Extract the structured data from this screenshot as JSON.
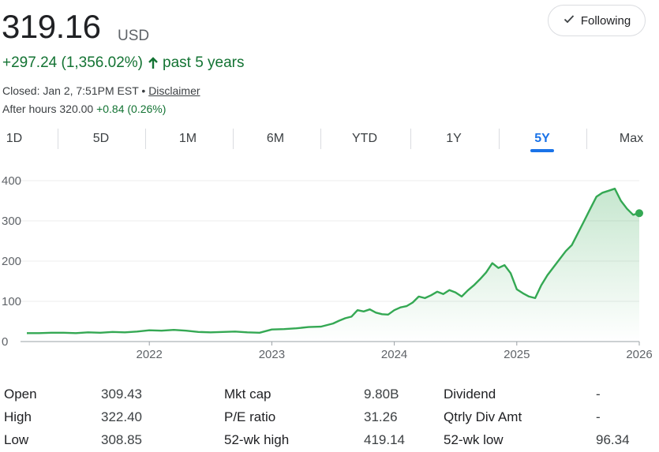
{
  "quote": {
    "price": "319.16",
    "currency": "USD",
    "change": "+297.24 (1,356.02%)",
    "period": "past 5 years",
    "closed_text": "Closed: Jan 2, 7:51PM EST",
    "separator": " • ",
    "disclaimer": "Disclaimer",
    "after_hours_prefix": "After hours 320.00",
    "after_hours_change": "+0.84 (0.26%)"
  },
  "follow_button": {
    "label": "Following"
  },
  "ranges": [
    "1D",
    "5D",
    "1M",
    "6M",
    "YTD",
    "1Y",
    "5Y",
    "Max"
  ],
  "active_range": "5Y",
  "colors": {
    "line": "#34a853",
    "positive": "#137333",
    "accent": "#1a73e8"
  },
  "chart_data": {
    "type": "line",
    "title": "",
    "xlabel": "",
    "ylabel": "",
    "ylim": [
      0,
      400
    ],
    "yticks": [
      0,
      100,
      200,
      300,
      400
    ],
    "xticks": [
      2022,
      2023,
      2024,
      2025,
      2026
    ],
    "grid": true,
    "series": [
      {
        "x": [
          2021.0,
          2021.1,
          2021.2,
          2021.3,
          2021.4,
          2021.5,
          2021.6,
          2021.7,
          2021.8,
          2021.9,
          2022.0,
          2022.1,
          2022.2,
          2022.3,
          2022.4,
          2022.5,
          2022.6,
          2022.7,
          2022.8,
          2022.9,
          2023.0,
          2023.1,
          2023.2,
          2023.3,
          2023.4,
          2023.5,
          2023.55,
          2023.6,
          2023.65,
          2023.7,
          2023.75,
          2023.8,
          2023.85,
          2023.9,
          2023.95,
          2024.0,
          2024.05,
          2024.1,
          2024.15,
          2024.2,
          2024.25,
          2024.3,
          2024.35,
          2024.4,
          2024.45,
          2024.5,
          2024.55,
          2024.6,
          2024.65,
          2024.7,
          2024.75,
          2024.8,
          2024.85,
          2024.9,
          2024.95,
          2025.0,
          2025.05,
          2025.1,
          2025.15,
          2025.2,
          2025.25,
          2025.3,
          2025.35,
          2025.4,
          2025.45,
          2025.5,
          2025.55,
          2025.6,
          2025.65,
          2025.7,
          2025.75,
          2025.8,
          2025.85,
          2025.9,
          2025.95,
          2026.0
        ],
        "values": [
          21,
          21,
          22,
          22,
          21,
          23,
          22,
          24,
          23,
          25,
          28,
          27,
          29,
          27,
          24,
          23,
          24,
          25,
          23,
          22,
          30,
          31,
          33,
          36,
          37,
          45,
          52,
          58,
          62,
          78,
          75,
          80,
          72,
          68,
          67,
          78,
          85,
          88,
          97,
          112,
          108,
          115,
          124,
          118,
          128,
          122,
          112,
          127,
          140,
          155,
          172,
          195,
          183,
          190,
          170,
          130,
          120,
          112,
          108,
          140,
          165,
          185,
          205,
          225,
          240,
          270,
          300,
          330,
          360,
          370,
          375,
          380,
          350,
          330,
          315,
          319.16
        ]
      }
    ],
    "last_value": 319.16
  },
  "stats": {
    "col1": [
      {
        "label": "Open",
        "value": "309.43"
      },
      {
        "label": "High",
        "value": "322.40"
      },
      {
        "label": "Low",
        "value": "308.85"
      }
    ],
    "col2": [
      {
        "label": "Mkt cap",
        "value": "9.80B"
      },
      {
        "label": "P/E ratio",
        "value": "31.26"
      },
      {
        "label": "52-wk high",
        "value": "419.14"
      }
    ],
    "col3": [
      {
        "label": "Dividend",
        "value": "-"
      },
      {
        "label": "Qtrly Div Amt",
        "value": "-"
      },
      {
        "label": "52-wk low",
        "value": "96.34"
      }
    ]
  }
}
